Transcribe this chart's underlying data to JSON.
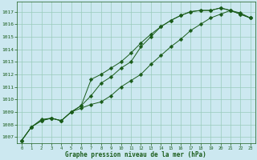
{
  "title": "Graphe pression niveau de la mer (hPa)",
  "bg_color": "#cce8f0",
  "grid_color": "#99ccbb",
  "line_color": "#1a5c1a",
  "xlim": [
    -0.5,
    23.5
  ],
  "ylim": [
    1006.5,
    1017.8
  ],
  "xticks": [
    0,
    1,
    2,
    3,
    4,
    5,
    6,
    7,
    8,
    9,
    10,
    11,
    12,
    13,
    14,
    15,
    16,
    17,
    18,
    19,
    20,
    21,
    22,
    23
  ],
  "yticks": [
    1007,
    1008,
    1009,
    1010,
    1011,
    1012,
    1013,
    1014,
    1015,
    1016,
    1017
  ],
  "series1": [
    [
      0,
      1006.7
    ],
    [
      1,
      1007.8
    ],
    [
      2,
      1008.3
    ],
    [
      3,
      1008.5
    ],
    [
      4,
      1008.3
    ],
    [
      5,
      1009.0
    ],
    [
      6,
      1009.5
    ],
    [
      7,
      1010.3
    ],
    [
      8,
      1011.3
    ],
    [
      9,
      1011.8
    ],
    [
      10,
      1012.5
    ],
    [
      11,
      1013.0
    ],
    [
      12,
      1014.2
    ],
    [
      13,
      1015.0
    ],
    [
      14,
      1015.8
    ],
    [
      15,
      1016.3
    ],
    [
      16,
      1016.7
    ],
    [
      17,
      1017.0
    ],
    [
      18,
      1017.1
    ],
    [
      19,
      1017.1
    ],
    [
      20,
      1017.3
    ],
    [
      21,
      1017.1
    ],
    [
      22,
      1016.8
    ],
    [
      23,
      1016.5
    ]
  ],
  "series2": [
    [
      0,
      1006.7
    ],
    [
      1,
      1007.8
    ],
    [
      2,
      1008.3
    ],
    [
      3,
      1008.5
    ],
    [
      4,
      1008.3
    ],
    [
      5,
      1009.0
    ],
    [
      6,
      1009.5
    ],
    [
      7,
      1011.6
    ],
    [
      8,
      1012.0
    ],
    [
      9,
      1012.5
    ],
    [
      10,
      1013.0
    ],
    [
      11,
      1013.7
    ],
    [
      12,
      1014.5
    ],
    [
      13,
      1015.2
    ],
    [
      14,
      1015.8
    ],
    [
      15,
      1016.3
    ],
    [
      16,
      1016.7
    ],
    [
      17,
      1017.0
    ],
    [
      18,
      1017.1
    ],
    [
      19,
      1017.1
    ],
    [
      20,
      1017.3
    ],
    [
      21,
      1017.1
    ],
    [
      22,
      1016.8
    ],
    [
      23,
      1016.5
    ]
  ],
  "series3": [
    [
      0,
      1006.7
    ],
    [
      1,
      1007.8
    ],
    [
      2,
      1008.4
    ],
    [
      3,
      1008.5
    ],
    [
      4,
      1008.3
    ],
    [
      5,
      1009.0
    ],
    [
      6,
      1009.3
    ],
    [
      7,
      1009.6
    ],
    [
      8,
      1009.8
    ],
    [
      9,
      1010.3
    ],
    [
      10,
      1011.0
    ],
    [
      11,
      1011.5
    ],
    [
      12,
      1012.0
    ],
    [
      13,
      1012.8
    ],
    [
      14,
      1013.5
    ],
    [
      15,
      1014.2
    ],
    [
      16,
      1014.8
    ],
    [
      17,
      1015.5
    ],
    [
      18,
      1016.0
    ],
    [
      19,
      1016.5
    ],
    [
      20,
      1016.8
    ],
    [
      21,
      1017.1
    ],
    [
      22,
      1016.9
    ],
    [
      23,
      1016.5
    ]
  ]
}
